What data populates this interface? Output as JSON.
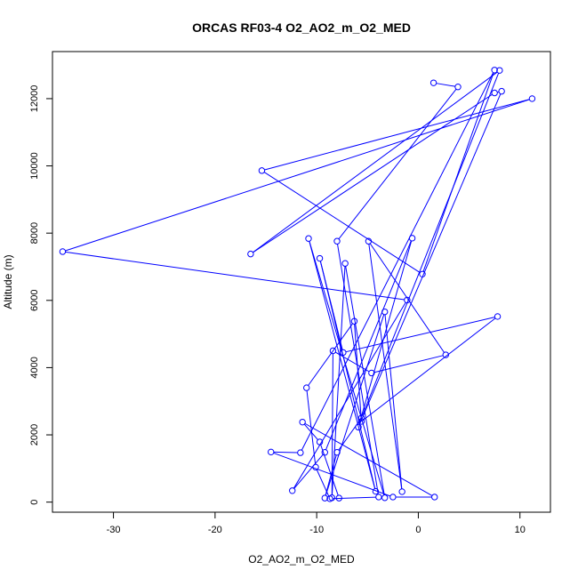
{
  "chart_data": {
    "type": "line",
    "title": "ORCAS RF03-4 O2_AO2_m_O2_MED",
    "xlabel": "O2_AO2_m_O2_MED",
    "ylabel": "Altitude (m)",
    "xlim": [
      -36,
      13
    ],
    "ylim": [
      -300,
      13400
    ],
    "xticks": [
      "-30",
      "-20",
      "-10",
      "0",
      "10"
    ],
    "yticks": [
      "0",
      "2000",
      "4000",
      "6000",
      "8000",
      "10000",
      "12000"
    ],
    "grid": false,
    "legend": "none",
    "series": [
      {
        "color": "#0000ff",
        "marker": "open-circle",
        "points": [
          {
            "x": 1.5,
            "y": 12470
          },
          {
            "x": 3.9,
            "y": 12350
          },
          {
            "x": -8.0,
            "y": 7760
          },
          {
            "x": -3.9,
            "y": 150
          },
          {
            "x": -8.7,
            "y": 100
          },
          {
            "x": -10.1,
            "y": 1040
          },
          {
            "x": -11.0,
            "y": 3400
          },
          {
            "x": -6.3,
            "y": 5380
          },
          {
            "x": -5.6,
            "y": 2400
          },
          {
            "x": 7.8,
            "y": 5520
          },
          {
            "x": -7.4,
            "y": 4450
          },
          {
            "x": -9.7,
            "y": 7250
          },
          {
            "x": -4.2,
            "y": 320
          },
          {
            "x": -10.8,
            "y": 7840
          },
          {
            "x": -3.3,
            "y": 130
          },
          {
            "x": -7.2,
            "y": 7100
          },
          {
            "x": -8.5,
            "y": 130
          },
          {
            "x": -8.4,
            "y": 4500
          },
          {
            "x": -4.6,
            "y": 3840
          },
          {
            "x": 2.7,
            "y": 4380
          },
          {
            "x": -4.9,
            "y": 7760
          },
          {
            "x": -1.6,
            "y": 310
          },
          {
            "x": -3.3,
            "y": 5660
          },
          {
            "x": -9.2,
            "y": 120
          },
          {
            "x": -8.0,
            "y": 1480
          },
          {
            "x": -5.6,
            "y": 2500
          },
          {
            "x": 8.0,
            "y": 12840
          },
          {
            "x": -16.5,
            "y": 7380
          },
          {
            "x": 7.5,
            "y": 12170
          },
          {
            "x": 8.2,
            "y": 12220
          },
          {
            "x": -5.9,
            "y": 2230
          },
          {
            "x": -0.6,
            "y": 7850
          },
          {
            "x": -9.2,
            "y": 1480
          },
          {
            "x": -12.4,
            "y": 340
          },
          {
            "x": -1.1,
            "y": 6010
          },
          {
            "x": -35.0,
            "y": 7450
          },
          {
            "x": 11.2,
            "y": 12000
          },
          {
            "x": -15.4,
            "y": 9860
          },
          {
            "x": 0.4,
            "y": 6780
          },
          {
            "x": 7.5,
            "y": 12850
          },
          {
            "x": -11.6,
            "y": 1470
          },
          {
            "x": -14.5,
            "y": 1490
          },
          {
            "x": -2.5,
            "y": 150
          },
          {
            "x": 1.6,
            "y": 150
          },
          {
            "x": -11.4,
            "y": 2380
          },
          {
            "x": -9.7,
            "y": 1790
          },
          {
            "x": -7.8,
            "y": 120
          }
        ]
      }
    ]
  }
}
